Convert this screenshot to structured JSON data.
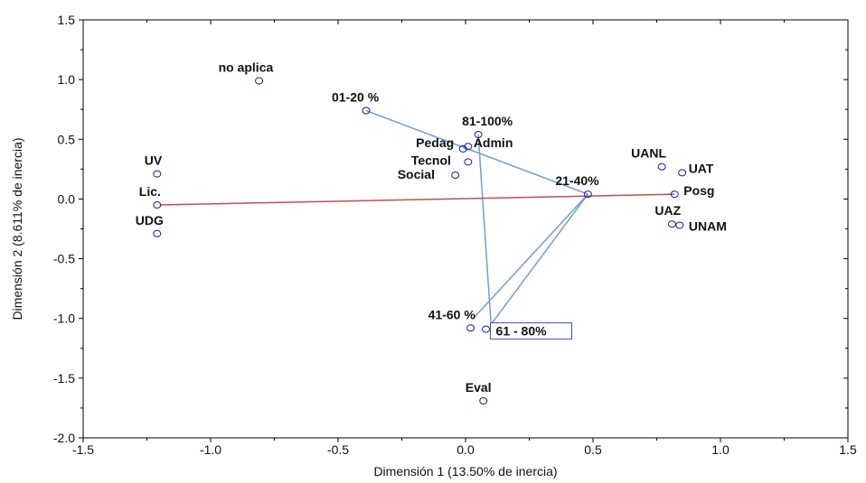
{
  "chart_data": {
    "type": "scatter",
    "xlabel": "Dimensión 1 (13.50% de inercia)",
    "ylabel": "Dimensión 2 (8.611% de inercia)",
    "xlim": [
      -1.5,
      1.5
    ],
    "ylim": [
      -2.0,
      1.5
    ],
    "xticks": [
      "-1.5",
      "-1.0",
      "-0.5",
      "0.0",
      "0.5",
      "1.0",
      "1.5"
    ],
    "yticks": [
      "1.5",
      "1.0",
      "0.5",
      "0.0",
      "-0.5",
      "-1.0",
      "-1.5",
      "-2.0"
    ],
    "grid": false,
    "points": [
      {
        "label": "no aplica",
        "x": -0.81,
        "y": 0.99
      },
      {
        "label": "01-20 %",
        "x": -0.39,
        "y": 0.74
      },
      {
        "label": "81-100%",
        "x": 0.05,
        "y": 0.54
      },
      {
        "label": "Pedag",
        "x": -0.01,
        "y": 0.42
      },
      {
        "label": "Admin",
        "x": 0.01,
        "y": 0.44
      },
      {
        "label": "Tecnol",
        "x": 0.01,
        "y": 0.31
      },
      {
        "label": "Social",
        "x": -0.04,
        "y": 0.2
      },
      {
        "label": "21-40%",
        "x": 0.48,
        "y": 0.04
      },
      {
        "label": "UANL",
        "x": 0.77,
        "y": 0.27
      },
      {
        "label": "UAT",
        "x": 0.85,
        "y": 0.22
      },
      {
        "label": "Posg",
        "x": 0.82,
        "y": 0.04
      },
      {
        "label": "UAZ",
        "x": 0.81,
        "y": -0.21
      },
      {
        "label": "UNAM",
        "x": 0.84,
        "y": -0.22
      },
      {
        "label": "UV",
        "x": -1.21,
        "y": 0.21
      },
      {
        "label": "Lic.",
        "x": -1.21,
        "y": -0.05
      },
      {
        "label": "UDG",
        "x": -1.21,
        "y": -0.29
      },
      {
        "label": "41-60 %",
        "x": 0.02,
        "y": -1.08
      },
      {
        "label": "61 - 80%",
        "x": 0.08,
        "y": -1.09
      },
      {
        "label": "Eval",
        "x": 0.07,
        "y": -1.69
      }
    ],
    "connections": [
      {
        "from": [
          -0.39,
          0.74
        ],
        "to": [
          0.48,
          0.04
        ],
        "color": "#6f9fd0"
      },
      {
        "from": [
          0.05,
          0.54
        ],
        "to": [
          0.1,
          -1.05
        ],
        "color": "#6f9fd0"
      },
      {
        "from": [
          0.48,
          0.04
        ],
        "to": [
          0.1,
          -1.05
        ],
        "color": "#6f9fd0"
      },
      {
        "from": [
          0.48,
          0.04
        ],
        "to": [
          0.03,
          -1.0
        ],
        "color": "#6f9fd0"
      },
      {
        "from": [
          -1.2,
          -0.05
        ],
        "to": [
          0.82,
          0.04
        ],
        "color": "#c0504d"
      }
    ],
    "boxed_label": "61 - 80%",
    "marker_color": "#1a1aaa"
  }
}
